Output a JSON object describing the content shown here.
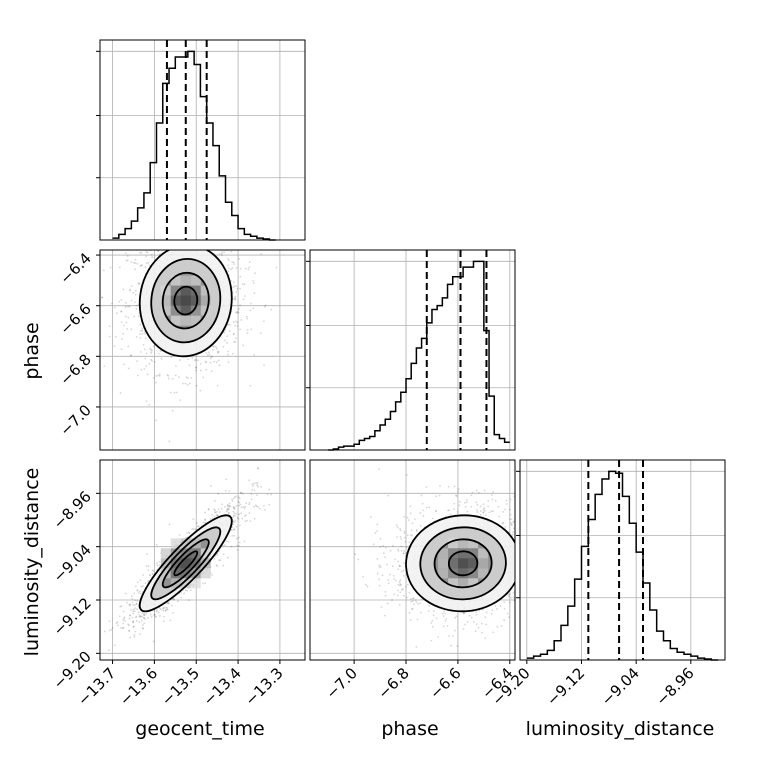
{
  "chart_data": {
    "type": "corner",
    "parameters": [
      "geocent_time",
      "phase",
      "luminosity_distance"
    ],
    "axis_labels": {
      "geocent_time": "geocent_time",
      "phase": "phase",
      "luminosity_distance": "luminosity_distance"
    },
    "ranges": {
      "geocent_time": [
        -13.73,
        -13.24
      ],
      "phase": [
        -7.17,
        -6.38
      ],
      "luminosity_distance": [
        -9.21,
        -8.91
      ]
    },
    "ticks": {
      "geocent_time": [
        -13.7,
        -13.6,
        -13.5,
        -13.4,
        -13.3
      ],
      "phase": [
        -7.0,
        -6.8,
        -6.6,
        -6.4
      ],
      "luminosity_distance": [
        -9.2,
        -9.12,
        -9.04,
        -8.96
      ]
    },
    "tick_labels": {
      "geocent_time": [
        "−13.7",
        "−13.6",
        "−13.5",
        "−13.4",
        "−13.3"
      ],
      "phase": [
        "−7.0",
        "−6.8",
        "−6.6",
        "−6.4"
      ],
      "luminosity_distance": [
        "−9.20",
        "−9.12",
        "−9.04",
        "−8.96"
      ]
    },
    "quantiles": {
      "geocent_time": [
        -13.57,
        -13.525,
        -13.475
      ],
      "phase": [
        -6.72,
        -6.59,
        -6.49
      ],
      "luminosity_distance": [
        -9.11,
        -9.065,
        -9.03
      ]
    },
    "histograms": {
      "geocent_time": {
        "edges": [
          -13.7,
          -13.685,
          -13.67,
          -13.655,
          -13.64,
          -13.625,
          -13.61,
          -13.595,
          -13.58,
          -13.565,
          -13.55,
          -13.535,
          -13.52,
          -13.505,
          -13.49,
          -13.475,
          -13.46,
          -13.445,
          -13.43,
          -13.415,
          -13.4,
          -13.385,
          -13.37,
          -13.355,
          -13.34,
          -13.325,
          -13.31
        ],
        "counts": [
          0.01,
          0.03,
          0.06,
          0.1,
          0.17,
          0.25,
          0.41,
          0.62,
          0.83,
          0.91,
          0.97,
          0.97,
          1.0,
          0.93,
          0.76,
          0.62,
          0.5,
          0.34,
          0.2,
          0.13,
          0.06,
          0.03,
          0.02,
          0.01,
          0.005,
          0.0
        ]
      },
      "phase": {
        "edges": [
          -7.1,
          -7.08,
          -7.06,
          -7.04,
          -7.02,
          -7.0,
          -6.98,
          -6.96,
          -6.94,
          -6.92,
          -6.9,
          -6.88,
          -6.86,
          -6.84,
          -6.82,
          -6.8,
          -6.78,
          -6.76,
          -6.74,
          -6.72,
          -6.7,
          -6.68,
          -6.66,
          -6.64,
          -6.62,
          -6.6,
          -6.58,
          -6.56,
          -6.54,
          -6.52,
          -6.5,
          -6.48,
          -6.46,
          -6.44,
          -6.42,
          -6.4
        ],
        "counts": [
          0.0,
          0.005,
          0.015,
          0.02,
          0.02,
          0.03,
          0.05,
          0.06,
          0.07,
          0.1,
          0.13,
          0.16,
          0.2,
          0.25,
          0.3,
          0.37,
          0.45,
          0.53,
          0.58,
          0.66,
          0.73,
          0.75,
          0.79,
          0.86,
          0.9,
          0.9,
          0.95,
          0.95,
          0.98,
          0.98,
          0.62,
          0.28,
          0.08,
          0.06,
          0.04
        ]
      },
      "luminosity_distance": {
        "edges": [
          -9.2,
          -9.19,
          -9.18,
          -9.17,
          -9.16,
          -9.15,
          -9.14,
          -9.13,
          -9.12,
          -9.11,
          -9.1,
          -9.09,
          -9.08,
          -9.07,
          -9.06,
          -9.05,
          -9.04,
          -9.03,
          -9.02,
          -9.01,
          -9.0,
          -8.99,
          -8.98,
          -8.97,
          -8.96,
          -8.95,
          -8.94,
          -8.93,
          -8.92
        ],
        "counts": [
          0.01,
          0.02,
          0.03,
          0.05,
          0.1,
          0.18,
          0.28,
          0.42,
          0.59,
          0.73,
          0.86,
          0.94,
          0.98,
          0.97,
          0.85,
          0.71,
          0.56,
          0.4,
          0.26,
          0.15,
          0.1,
          0.06,
          0.04,
          0.03,
          0.02,
          0.01,
          0.005,
          0.0
        ]
      }
    },
    "pairs": [
      {
        "x": "geocent_time",
        "y": "phase",
        "mean": [
          -13.525,
          -6.58
        ],
        "sd": [
          0.055,
          0.11
        ],
        "rho": 0.05
      },
      {
        "x": "geocent_time",
        "y": "luminosity_distance",
        "mean": [
          -13.525,
          -9.065
        ],
        "sd": [
          0.055,
          0.036
        ],
        "rho": 0.88
      },
      {
        "x": "phase",
        "y": "luminosity_distance",
        "mean": [
          -6.58,
          -9.065
        ],
        "sd": [
          0.11,
          0.036
        ],
        "rho": 0.02
      }
    ],
    "contour_levels_sigma": [
      0.5,
      1.0,
      1.5,
      2.0
    ],
    "grid": true
  }
}
